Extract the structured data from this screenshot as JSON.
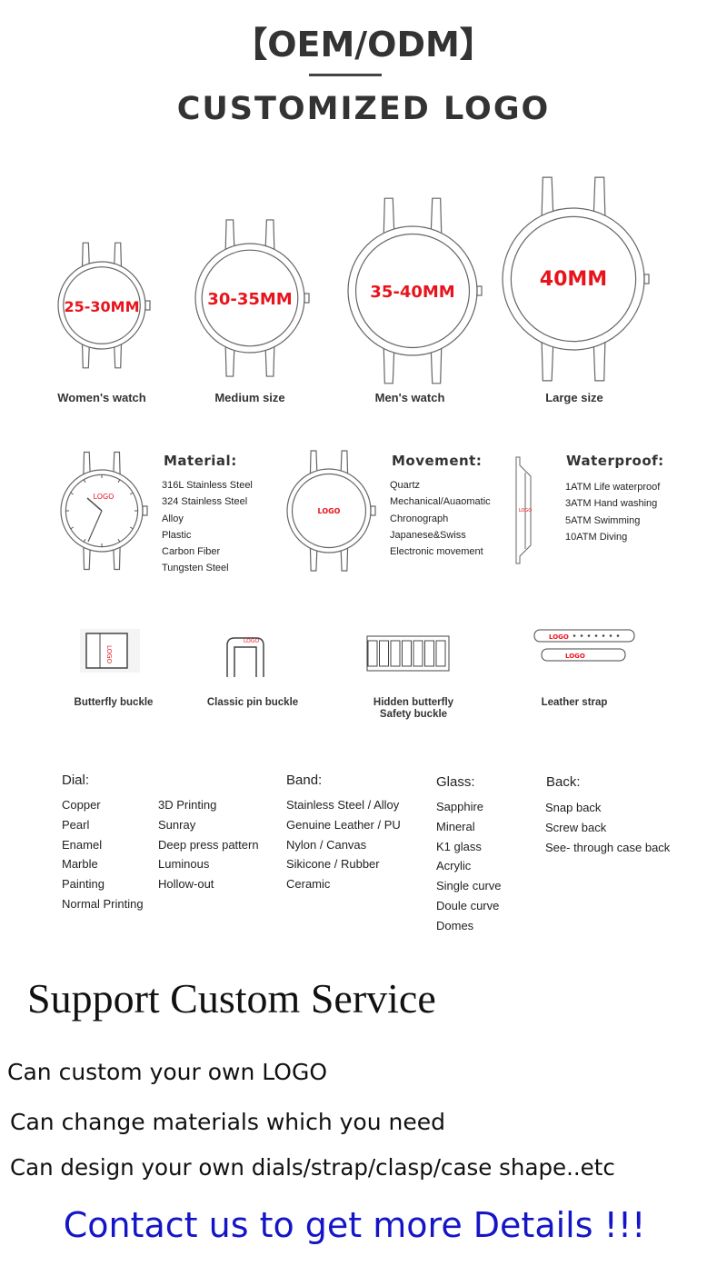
{
  "header": {
    "title": "【OEM/ODM】",
    "subtitle": "CUSTOMIZED LOGO"
  },
  "sizes": [
    {
      "size": "25-30MM",
      "label": "Women's watch"
    },
    {
      "size": "30-35MM",
      "label": "Medium size"
    },
    {
      "size": "35-40MM",
      "label": "Men's watch"
    },
    {
      "size": "40MM",
      "label": "Large size"
    }
  ],
  "logo_text": "LOGO",
  "features": {
    "material": {
      "title": "Material:",
      "items": [
        "316L Stainless Steel",
        "324 Stainless Steel",
        "Alloy",
        "Plastic",
        "Carbon Fiber",
        "Tungsten Steel"
      ]
    },
    "movement": {
      "title": "Movement:",
      "items": [
        "Quartz",
        "Mechanical/Auaomatic",
        "Chronograph",
        "Japanese&Swiss",
        "Electronic movement"
      ]
    },
    "waterproof": {
      "title": "Waterproof:",
      "items": [
        "1ATM Life waterproof",
        "3ATM Hand washing",
        "5ATM Swimming",
        "10ATM Diving"
      ]
    }
  },
  "buckles": [
    {
      "label": "Butterfly buckle"
    },
    {
      "label": "Classic pin buckle"
    },
    {
      "label": "Hidden butterfly\nSafety buckle"
    },
    {
      "label": "Leather strap"
    }
  ],
  "specs": {
    "dial": {
      "title": "Dial:",
      "col1": [
        "Copper",
        "Pearl",
        "Enamel",
        "Marble",
        "Painting",
        "Normal Printing"
      ],
      "col2": [
        "3D Printing",
        "Sunray",
        "Deep press pattern",
        "Luminous",
        "Hollow-out"
      ]
    },
    "band": {
      "title": "Band:",
      "items": [
        "Stainless Steel / Alloy",
        "Genuine Leather / PU",
        "Nylon / Canvas",
        "Sikicone / Rubber",
        "Ceramic"
      ]
    },
    "glass": {
      "title": "Glass:",
      "items": [
        "Sapphire",
        "Mineral",
        "K1 glass",
        "Acrylic",
        "Single curve",
        "Doule curve",
        "Domes"
      ]
    },
    "back": {
      "title": "Back:",
      "items": [
        "Snap back",
        "Screw back",
        "See- through case back"
      ]
    }
  },
  "service": {
    "title": "Support Custom Service",
    "lines": [
      "Can custom your own LOGO",
      "Can change materials which you need",
      "Can design your own dials/strap/clasp/case shape..etc"
    ],
    "contact": "Contact us to get more Details !!!"
  },
  "colors": {
    "text": "#333333",
    "logo_red": "#e8141c",
    "contact_blue": "#1515c8",
    "line": "#555555"
  }
}
